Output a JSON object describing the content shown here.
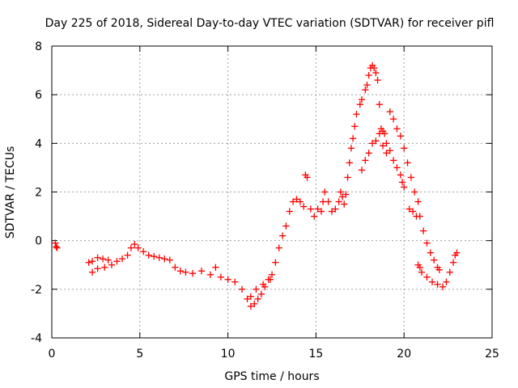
{
  "chart_data": {
    "type": "scatter",
    "title": "Day 225 of 2018, Sidereal Day-to-day VTEC variation (SDTVAR) for receiver pifl",
    "xlabel": "GPS time / hours",
    "ylabel": "SDTVAR / TECUs",
    "xlim": [
      0,
      25
    ],
    "ylim": [
      -4,
      8
    ],
    "x_ticks": [
      0,
      5,
      10,
      15,
      20,
      25
    ],
    "y_ticks": [
      -4,
      -2,
      0,
      2,
      4,
      6,
      8
    ],
    "grid": true,
    "marker": "+",
    "color": "#ff0000",
    "series": [
      {
        "name": "pifl",
        "points": [
          [
            0.2,
            -0.1
          ],
          [
            0.25,
            -0.25
          ],
          [
            0.3,
            -0.3
          ],
          [
            2.1,
            -0.9
          ],
          [
            2.3,
            -0.85
          ],
          [
            2.6,
            -0.7
          ],
          [
            2.9,
            -0.75
          ],
          [
            3.2,
            -0.8
          ],
          [
            2.3,
            -1.3
          ],
          [
            2.6,
            -1.15
          ],
          [
            3.0,
            -1.1
          ],
          [
            3.4,
            -1.0
          ],
          [
            3.7,
            -0.85
          ],
          [
            4.0,
            -0.75
          ],
          [
            4.3,
            -0.6
          ],
          [
            4.5,
            -0.3
          ],
          [
            4.7,
            -0.15
          ],
          [
            4.9,
            -0.3
          ],
          [
            5.2,
            -0.45
          ],
          [
            5.5,
            -0.6
          ],
          [
            5.8,
            -0.65
          ],
          [
            6.1,
            -0.7
          ],
          [
            6.4,
            -0.75
          ],
          [
            6.7,
            -0.8
          ],
          [
            7.0,
            -1.1
          ],
          [
            7.3,
            -1.25
          ],
          [
            7.6,
            -1.3
          ],
          [
            8.0,
            -1.35
          ],
          [
            8.5,
            -1.25
          ],
          [
            9.0,
            -1.4
          ],
          [
            9.3,
            -1.1
          ],
          [
            9.6,
            -1.5
          ],
          [
            10.0,
            -1.6
          ],
          [
            10.4,
            -1.7
          ],
          [
            10.8,
            -2.0
          ],
          [
            11.1,
            -2.4
          ],
          [
            11.3,
            -2.7
          ],
          [
            11.5,
            -2.6
          ],
          [
            11.7,
            -2.4
          ],
          [
            11.9,
            -2.2
          ],
          [
            12.1,
            -1.9
          ],
          [
            12.3,
            -1.6
          ],
          [
            12.5,
            -1.4
          ],
          [
            11.3,
            -2.3
          ],
          [
            11.6,
            -2.0
          ],
          [
            12.0,
            -1.8
          ],
          [
            12.4,
            -1.6
          ],
          [
            12.7,
            -0.9
          ],
          [
            12.9,
            -0.3
          ],
          [
            13.1,
            0.2
          ],
          [
            13.3,
            0.6
          ],
          [
            13.5,
            1.2
          ],
          [
            13.7,
            1.6
          ],
          [
            13.9,
            1.7
          ],
          [
            14.1,
            1.6
          ],
          [
            14.3,
            1.4
          ],
          [
            14.4,
            2.7
          ],
          [
            14.5,
            2.6
          ],
          [
            14.7,
            1.3
          ],
          [
            14.9,
            1.0
          ],
          [
            15.1,
            1.3
          ],
          [
            15.3,
            1.2
          ],
          [
            15.4,
            1.6
          ],
          [
            15.5,
            2.0
          ],
          [
            15.7,
            1.6
          ],
          [
            15.9,
            1.2
          ],
          [
            16.1,
            1.3
          ],
          [
            16.3,
            1.6
          ],
          [
            16.4,
            2.0
          ],
          [
            16.5,
            1.8
          ],
          [
            16.6,
            1.5
          ],
          [
            16.7,
            1.9
          ],
          [
            16.8,
            2.6
          ],
          [
            16.9,
            3.2
          ],
          [
            17.0,
            3.8
          ],
          [
            17.1,
            4.2
          ],
          [
            17.2,
            4.7
          ],
          [
            17.3,
            5.2
          ],
          [
            17.5,
            5.6
          ],
          [
            17.6,
            5.8
          ],
          [
            17.8,
            6.2
          ],
          [
            17.9,
            6.4
          ],
          [
            18.0,
            6.8
          ],
          [
            18.1,
            7.1
          ],
          [
            18.2,
            7.2
          ],
          [
            18.3,
            7.1
          ],
          [
            18.4,
            6.9
          ],
          [
            18.5,
            6.6
          ],
          [
            18.6,
            5.6
          ],
          [
            18.7,
            4.6
          ],
          [
            18.8,
            4.5
          ],
          [
            18.9,
            4.4
          ],
          [
            19.0,
            4.0
          ],
          [
            19.2,
            3.7
          ],
          [
            19.4,
            3.3
          ],
          [
            19.6,
            3.0
          ],
          [
            19.8,
            2.7
          ],
          [
            19.9,
            2.4
          ],
          [
            20.0,
            2.2
          ],
          [
            19.2,
            5.3
          ],
          [
            19.4,
            5.0
          ],
          [
            19.6,
            4.6
          ],
          [
            19.8,
            4.3
          ],
          [
            20.0,
            3.8
          ],
          [
            20.2,
            3.2
          ],
          [
            20.4,
            2.6
          ],
          [
            20.6,
            2.0
          ],
          [
            20.8,
            1.6
          ],
          [
            20.9,
            1.0
          ],
          [
            21.1,
            0.4
          ],
          [
            21.3,
            -0.1
          ],
          [
            21.5,
            -0.5
          ],
          [
            21.7,
            -0.8
          ],
          [
            21.9,
            -1.1
          ],
          [
            22.0,
            -1.2
          ],
          [
            17.6,
            2.9
          ],
          [
            17.8,
            3.3
          ],
          [
            18.0,
            3.6
          ],
          [
            18.2,
            4.0
          ],
          [
            18.4,
            4.1
          ],
          [
            18.6,
            4.4
          ],
          [
            18.8,
            3.9
          ],
          [
            19.0,
            3.6
          ],
          [
            20.3,
            1.3
          ],
          [
            20.5,
            1.2
          ],
          [
            20.7,
            1.0
          ],
          [
            20.8,
            -1.0
          ],
          [
            20.9,
            -1.1
          ],
          [
            21.0,
            -1.3
          ],
          [
            21.3,
            -1.5
          ],
          [
            21.6,
            -1.7
          ],
          [
            21.9,
            -1.8
          ],
          [
            22.2,
            -1.9
          ],
          [
            22.4,
            -1.7
          ],
          [
            22.6,
            -1.3
          ],
          [
            22.8,
            -0.9
          ],
          [
            22.9,
            -0.6
          ],
          [
            23.0,
            -0.5
          ]
        ]
      }
    ]
  }
}
